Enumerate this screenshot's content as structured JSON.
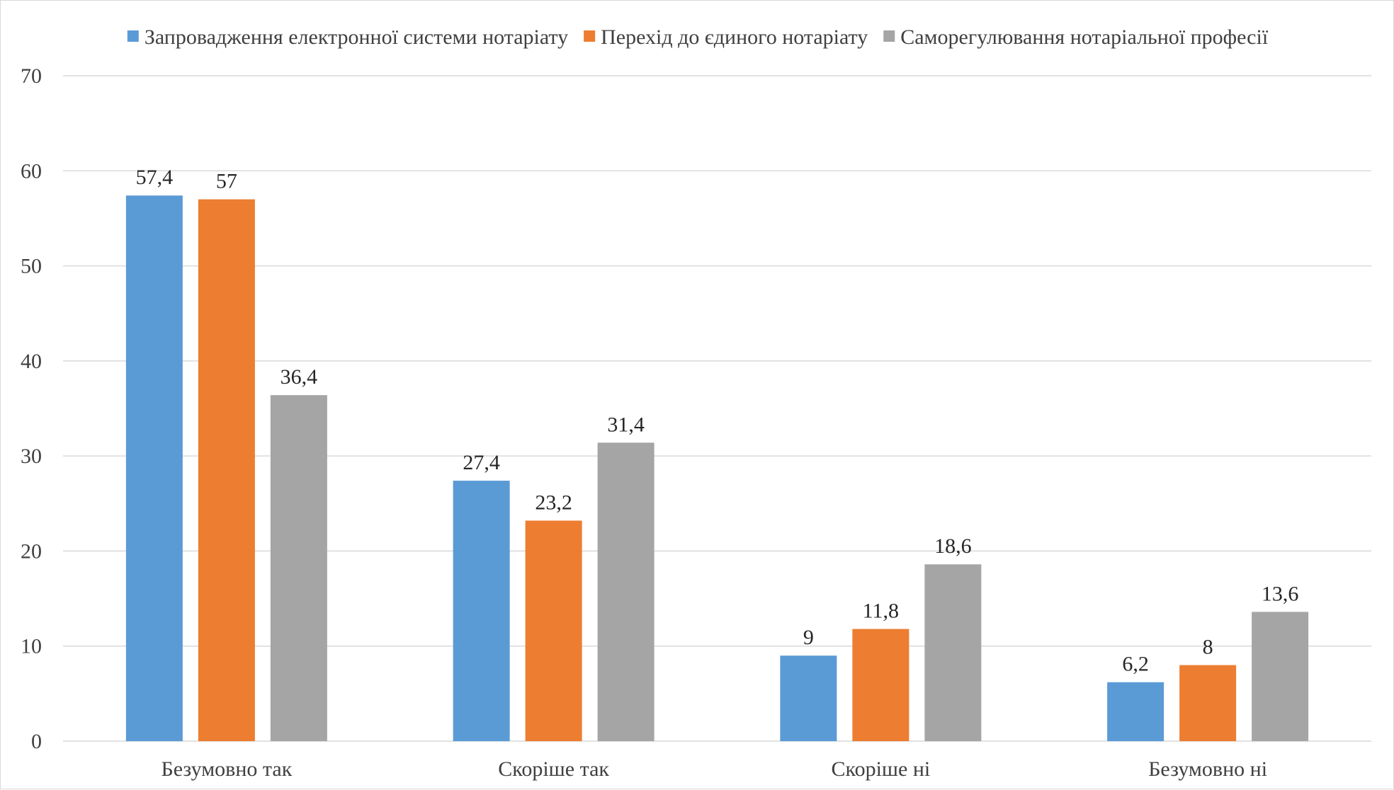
{
  "chart_data": {
    "type": "bar",
    "title": "",
    "xlabel": "",
    "ylabel": "",
    "categories": [
      "Безумовно так",
      "Скоріше так",
      "Скоріше ні",
      "Безумовно ні"
    ],
    "series": [
      {
        "name": "Запровадження електронної системи нотаріату",
        "color": "#5b9bd5",
        "values": [
          57.4,
          27.4,
          9,
          6.2
        ],
        "labels": [
          "57,4",
          "27,4",
          "9",
          "6,2"
        ]
      },
      {
        "name": "Перехід до єдиного нотаріату",
        "color": "#ed7d31",
        "values": [
          57,
          23.2,
          11.8,
          8
        ],
        "labels": [
          "57",
          "23,2",
          "11,8",
          "8"
        ]
      },
      {
        "name": "Саморегулювання нотаріальної професії",
        "color": "#a5a5a5",
        "values": [
          36.4,
          31.4,
          18.6,
          13.6
        ],
        "labels": [
          "36,4",
          "31,4",
          "18,6",
          "13,6"
        ]
      }
    ],
    "ylim": [
      0,
      70
    ],
    "yticks": [
      0,
      10,
      20,
      30,
      40,
      50,
      60,
      70
    ],
    "grid": true,
    "legend_position": "top"
  }
}
